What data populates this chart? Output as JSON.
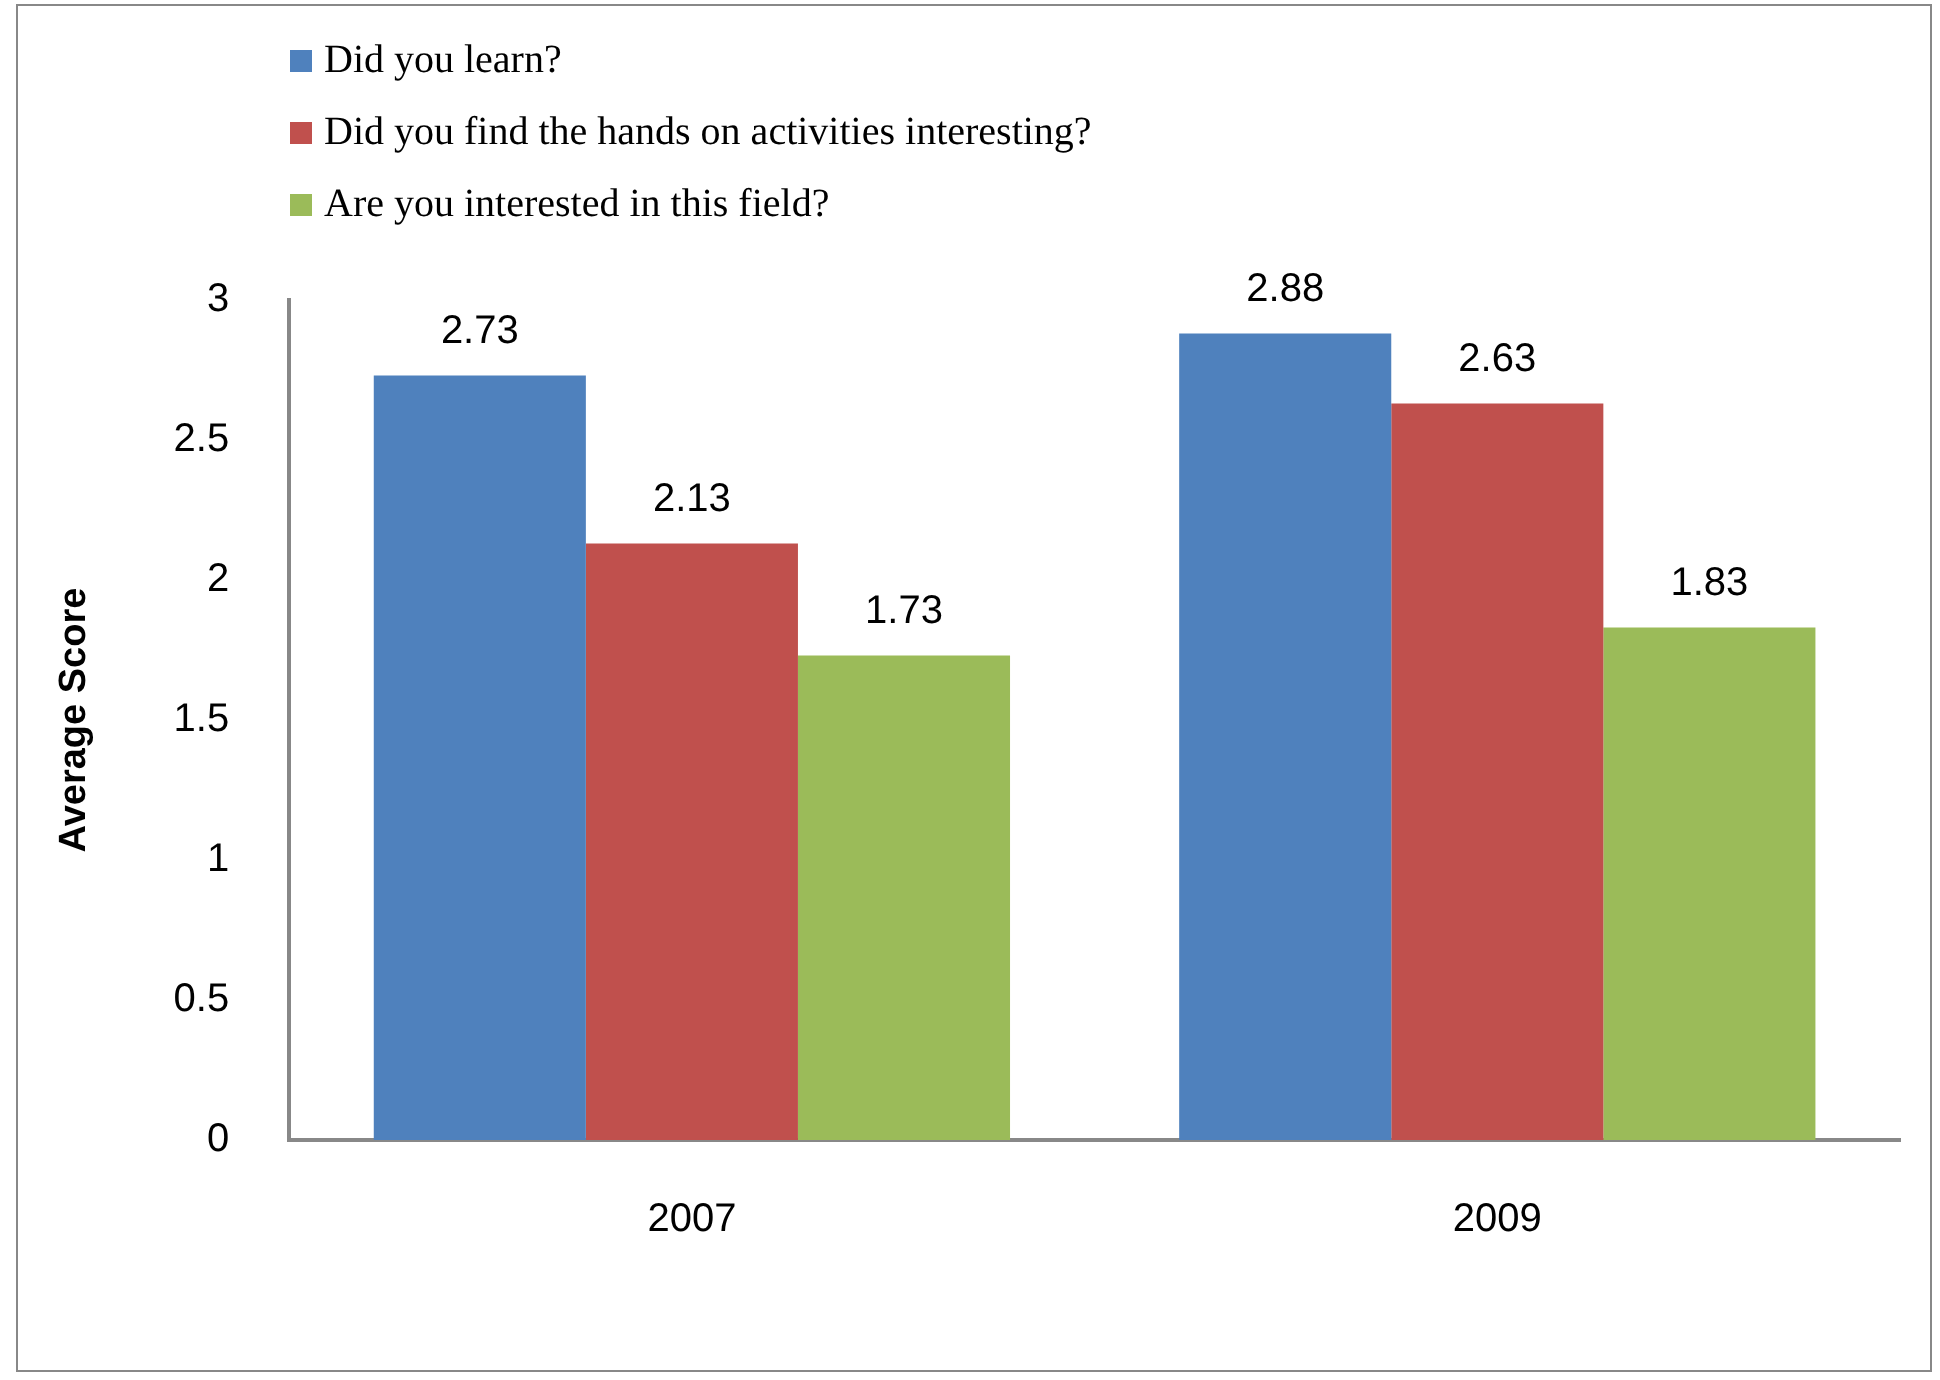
{
  "chart_data": {
    "type": "bar",
    "ylabel": "Average Score",
    "categories": [
      "2007",
      "2009"
    ],
    "series": [
      {
        "name": "Did you learn?",
        "color": "#4f81bd",
        "values": [
          2.73,
          2.88
        ]
      },
      {
        "name": "Did you find the hands on activities interesting?",
        "color": "#c0504d",
        "values": [
          2.13,
          2.63
        ]
      },
      {
        "name": "Are you interested in this field?",
        "color": "#9bbb59",
        "values": [
          1.73,
          1.83
        ]
      }
    ],
    "ylim": [
      0,
      3
    ],
    "yticks": [
      0,
      0.5,
      1,
      1.5,
      2,
      2.5,
      3
    ],
    "grid": false,
    "legend": "top left",
    "data_labels": true
  }
}
